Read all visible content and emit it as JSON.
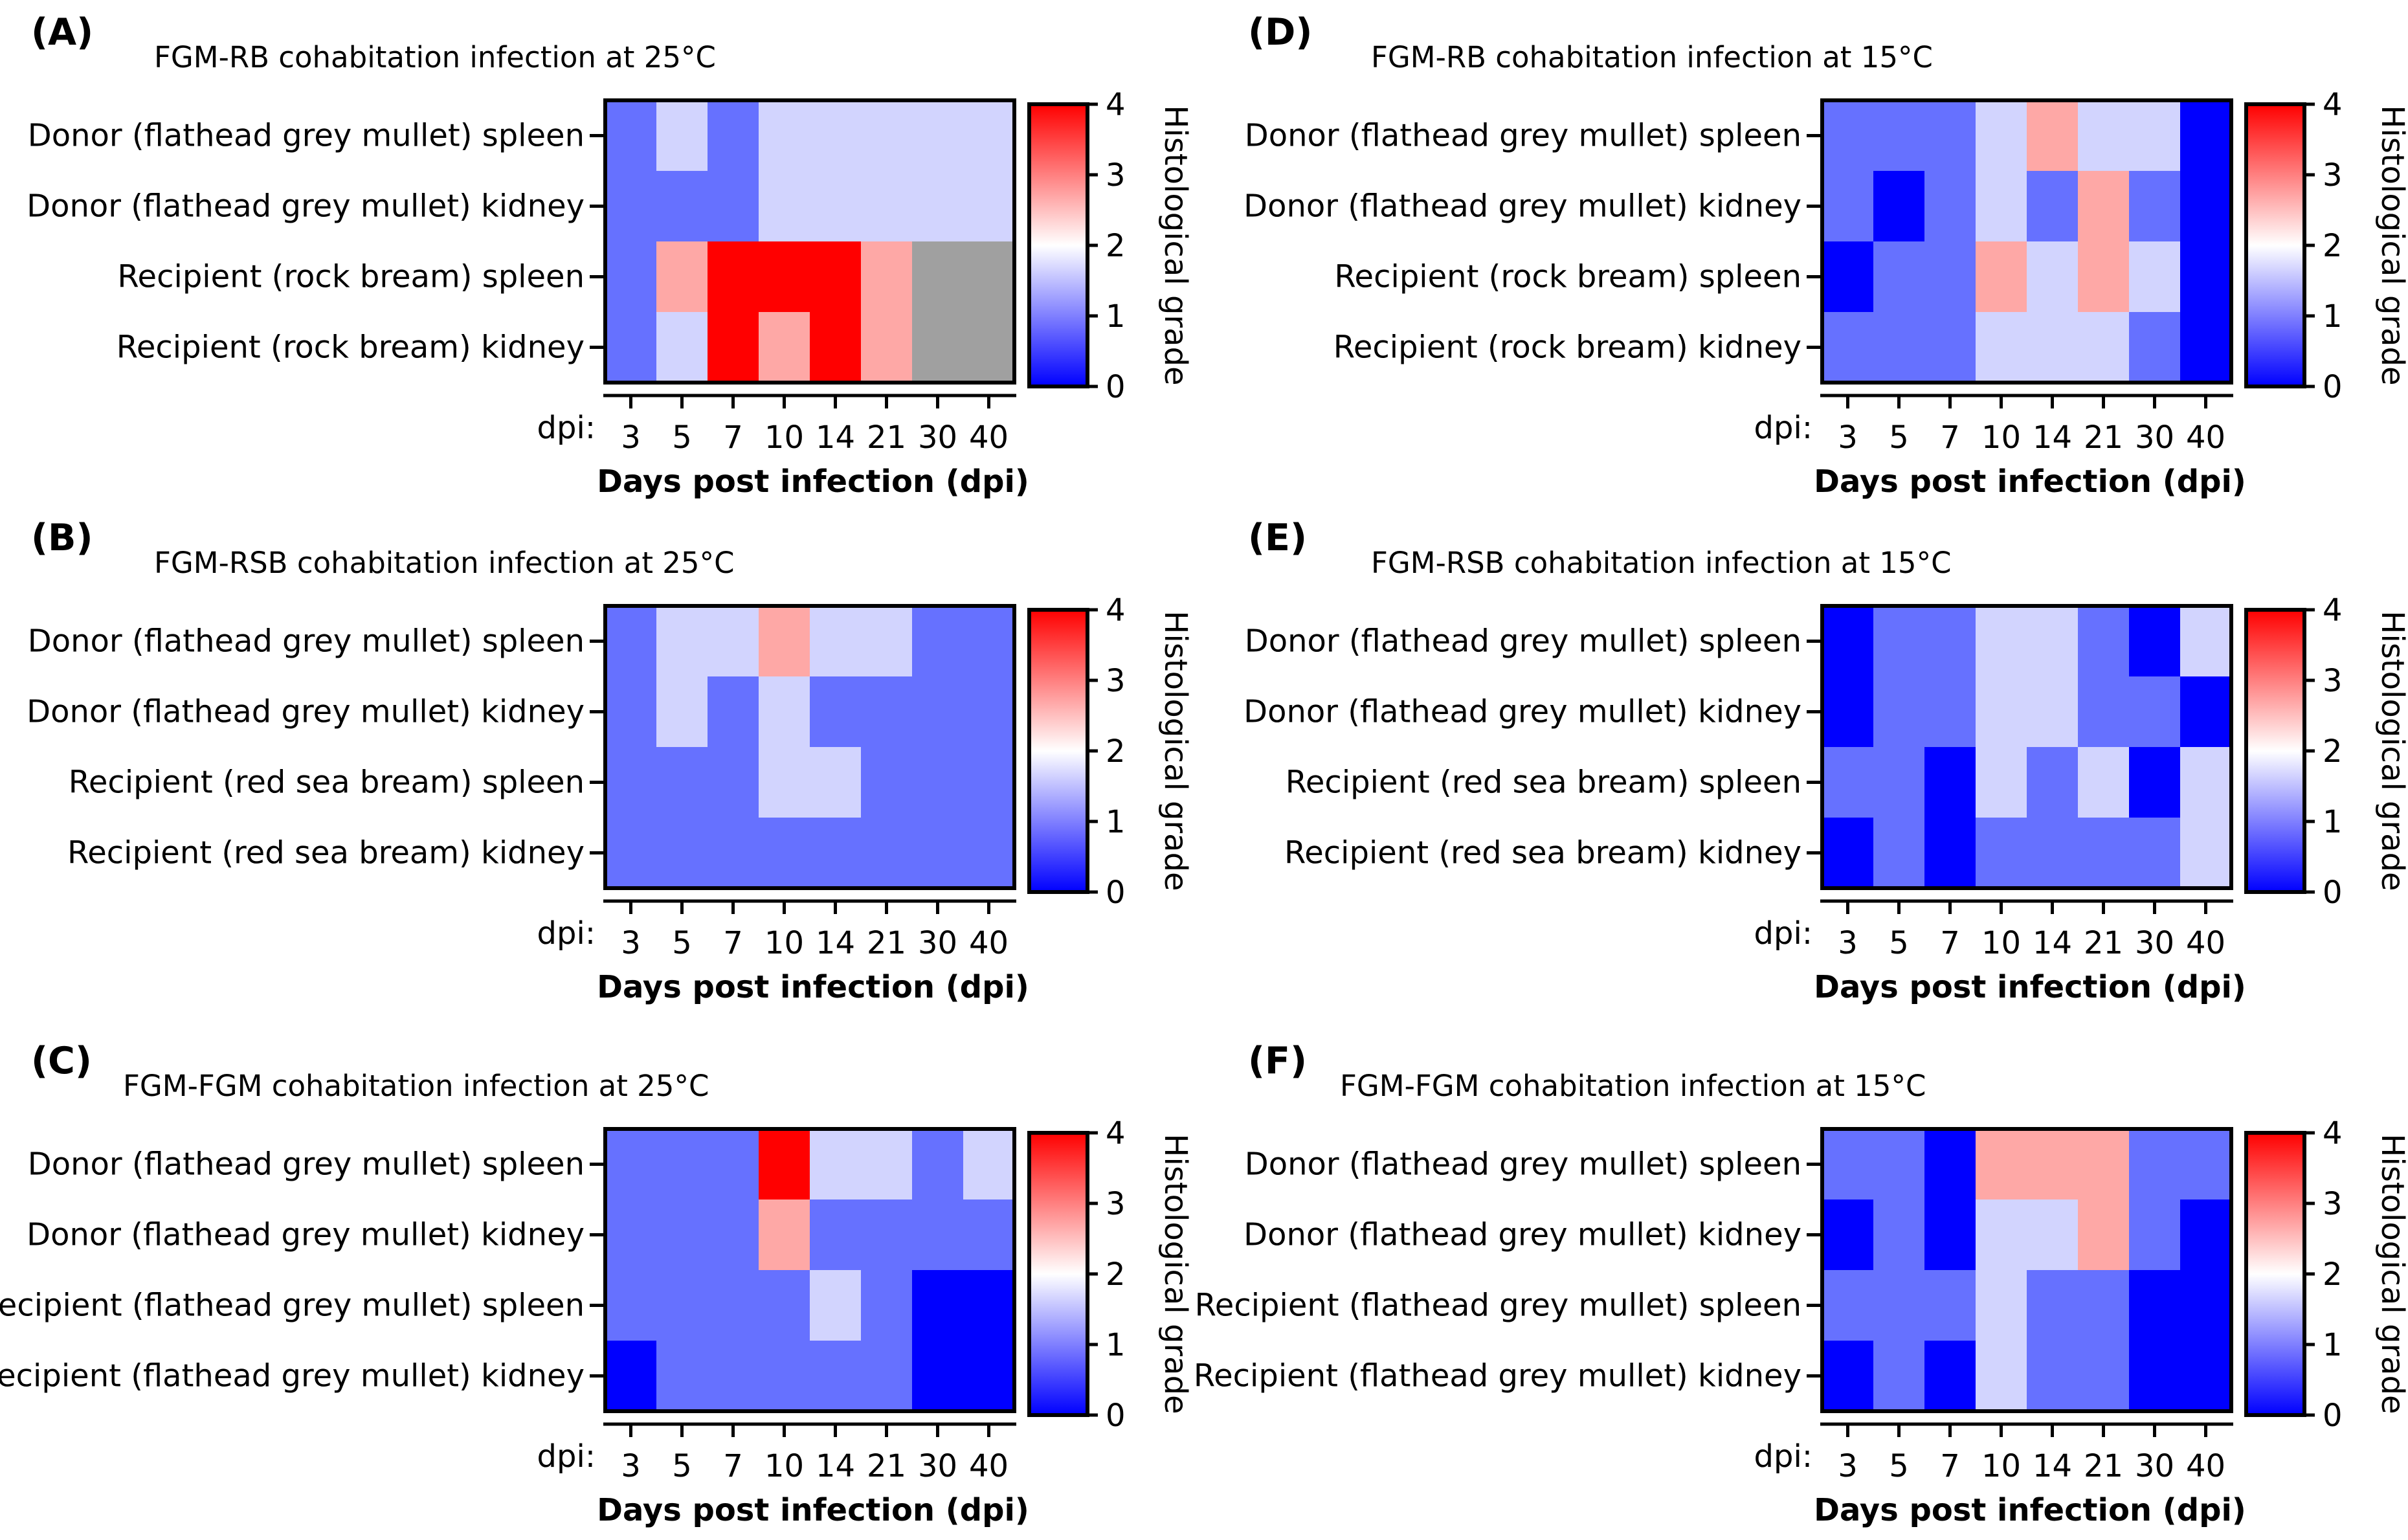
{
  "figure": {
    "x_prefix": "dpi:",
    "x_title": "Days post infection (dpi)",
    "colorbar_label": "Histological grade",
    "colorbar_ticks": [
      "0",
      "1",
      "2",
      "3",
      "4"
    ],
    "colors": {
      "grade0": "#0000ff",
      "grade1": "#6671ff",
      "grade2": "#d2d4fe",
      "grade3": "#fea8a6",
      "grade4": "#ff0000",
      "na": "#a0a0a0"
    }
  },
  "chart_data": [
    {
      "type": "heatmap",
      "panel": "(A)",
      "title": "FGM-RB cohabitation infection at 25°C",
      "xlabel": "Days post infection (dpi)",
      "colorbar_label": "Histological grade",
      "clim": [
        0,
        4
      ],
      "x": [
        "3",
        "5",
        "7",
        "10",
        "14",
        "21",
        "30",
        "40"
      ],
      "y": [
        "Donor (flathead grey mullet) spleen",
        "Donor (flathead grey mullet) kidney",
        "Recipient (rock bream) spleen",
        "Recipient (rock bream) kidney"
      ],
      "values": [
        [
          1,
          2,
          1,
          2,
          2,
          2,
          2,
          2
        ],
        [
          1,
          1,
          1,
          2,
          2,
          2,
          2,
          2
        ],
        [
          1,
          3,
          4,
          4,
          4,
          3,
          null,
          null
        ],
        [
          1,
          2,
          4,
          3,
          4,
          3,
          null,
          null
        ]
      ]
    },
    {
      "type": "heatmap",
      "panel": "(B)",
      "title": "FGM-RSB cohabitation infection at 25°C",
      "xlabel": "Days post infection (dpi)",
      "colorbar_label": "Histological grade",
      "clim": [
        0,
        4
      ],
      "x": [
        "3",
        "5",
        "7",
        "10",
        "14",
        "21",
        "30",
        "40"
      ],
      "y": [
        "Donor (flathead grey mullet) spleen",
        "Donor (flathead grey mullet) kidney",
        "Recipient (red sea bream) spleen",
        "Recipient (red sea bream) kidney"
      ],
      "values": [
        [
          1,
          2,
          2,
          3,
          2,
          2,
          1,
          1
        ],
        [
          1,
          2,
          1,
          2,
          1,
          1,
          1,
          1
        ],
        [
          1,
          1,
          1,
          2,
          2,
          1,
          1,
          1
        ],
        [
          1,
          1,
          1,
          1,
          1,
          1,
          1,
          1
        ]
      ]
    },
    {
      "type": "heatmap",
      "panel": "(C)",
      "title": "FGM-FGM cohabitation infection at 25°C",
      "xlabel": "Days post infection (dpi)",
      "colorbar_label": "Histological grade",
      "clim": [
        0,
        4
      ],
      "x": [
        "3",
        "5",
        "7",
        "10",
        "14",
        "21",
        "30",
        "40"
      ],
      "y": [
        "Donor (flathead grey mullet) spleen",
        "Donor (flathead grey mullet) kidney",
        "Recipient (flathead grey mullet) spleen",
        "Recipient (flathead grey mullet) kidney"
      ],
      "values": [
        [
          1,
          1,
          1,
          4,
          2,
          2,
          1,
          2
        ],
        [
          1,
          1,
          1,
          3,
          1,
          1,
          1,
          1
        ],
        [
          1,
          1,
          1,
          1,
          2,
          1,
          0,
          0
        ],
        [
          0,
          1,
          1,
          1,
          1,
          1,
          0,
          0
        ]
      ]
    },
    {
      "type": "heatmap",
      "panel": "(D)",
      "title": "FGM-RB cohabitation infection at 15°C",
      "xlabel": "Days post infection (dpi)",
      "colorbar_label": "Histological grade",
      "clim": [
        0,
        4
      ],
      "x": [
        "3",
        "5",
        "7",
        "10",
        "14",
        "21",
        "30",
        "40"
      ],
      "y": [
        "Donor (flathead grey mullet) spleen",
        "Donor (flathead grey mullet) kidney",
        "Recipient (rock bream) spleen",
        "Recipient (rock bream) kidney"
      ],
      "values": [
        [
          1,
          1,
          1,
          2,
          3,
          2,
          2,
          0
        ],
        [
          1,
          0,
          1,
          2,
          1,
          3,
          1,
          0
        ],
        [
          0,
          1,
          1,
          3,
          2,
          3,
          2,
          0
        ],
        [
          1,
          1,
          1,
          2,
          2,
          2,
          1,
          0
        ]
      ]
    },
    {
      "type": "heatmap",
      "panel": "(E)",
      "title": "FGM-RSB cohabitation infection at 15°C",
      "xlabel": "Days post infection (dpi)",
      "colorbar_label": "Histological grade",
      "clim": [
        0,
        4
      ],
      "x": [
        "3",
        "5",
        "7",
        "10",
        "14",
        "21",
        "30",
        "40"
      ],
      "y": [
        "Donor (flathead grey mullet) spleen",
        "Donor (flathead grey mullet) kidney",
        "Recipient (red sea bream) spleen",
        "Recipient (red sea bream) kidney"
      ],
      "values": [
        [
          0,
          1,
          1,
          2,
          2,
          1,
          0,
          2
        ],
        [
          0,
          1,
          1,
          2,
          2,
          1,
          1,
          0
        ],
        [
          1,
          1,
          0,
          2,
          1,
          2,
          0,
          2
        ],
        [
          0,
          1,
          0,
          1,
          1,
          1,
          1,
          2
        ]
      ]
    },
    {
      "type": "heatmap",
      "panel": "(F)",
      "title": "FGM-FGM cohabitation infection at 15°C",
      "xlabel": "Days post infection (dpi)",
      "colorbar_label": "Histological grade",
      "clim": [
        0,
        4
      ],
      "x": [
        "3",
        "5",
        "7",
        "10",
        "14",
        "21",
        "30",
        "40"
      ],
      "y": [
        "Donor (flathead grey mullet) spleen",
        "Donor (flathead grey mullet) kidney",
        "Recipient (flathead grey mullet) spleen",
        "Recipient (flathead grey mullet) kidney"
      ],
      "values": [
        [
          1,
          1,
          0,
          3,
          3,
          3,
          1,
          1
        ],
        [
          0,
          1,
          0,
          2,
          2,
          3,
          1,
          0
        ],
        [
          1,
          1,
          1,
          2,
          1,
          1,
          0,
          0
        ],
        [
          0,
          1,
          0,
          2,
          1,
          1,
          0,
          0
        ]
      ]
    }
  ]
}
